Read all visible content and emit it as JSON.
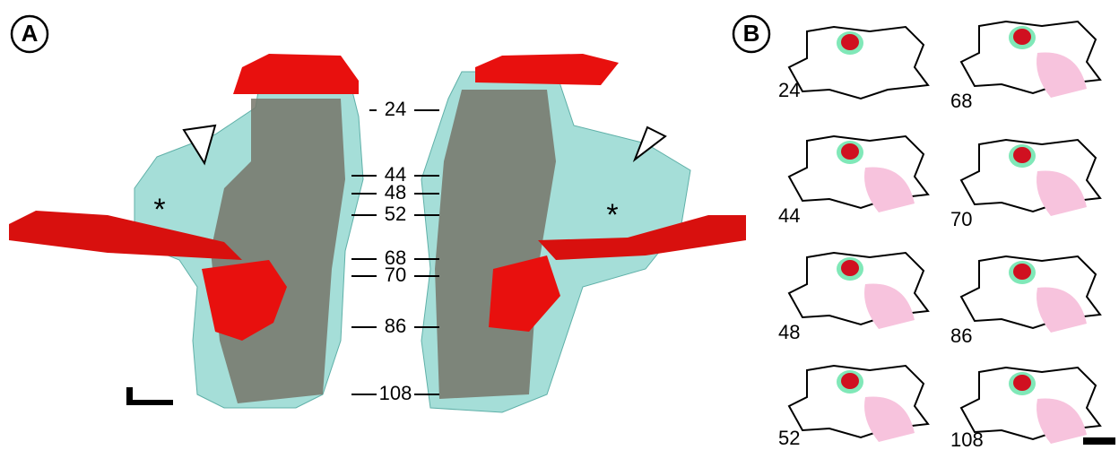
{
  "panels": [
    {
      "label": "A",
      "slice_labels": [
        "24",
        "44",
        "48",
        "52",
        "68",
        "70",
        "86",
        "108"
      ],
      "markers": [
        "*",
        "*"
      ]
    },
    {
      "label": "B",
      "sections": [
        "24",
        "44",
        "48",
        "52",
        "68",
        "70",
        "86",
        "108"
      ]
    }
  ]
}
